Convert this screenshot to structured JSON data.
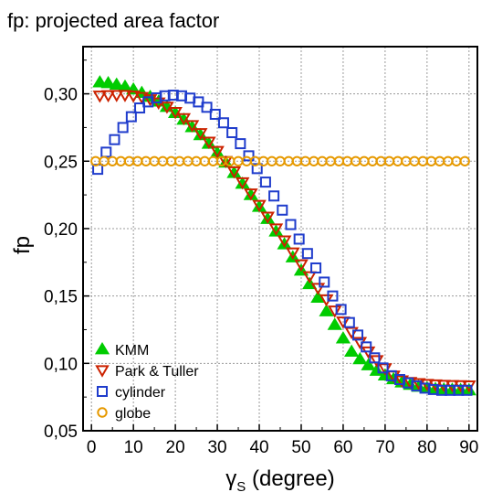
{
  "chart_data": {
    "type": "scatter",
    "title": "fp: projected area factor",
    "xlabel": "γS (degree)",
    "xlabel_parts": {
      "symbol": "γ",
      "subscript": "S",
      "rest": " (degree)"
    },
    "ylabel": "fp",
    "xlim": [
      -2,
      92
    ],
    "ylim": [
      0.05,
      0.335
    ],
    "x_ticks": [
      0,
      10,
      20,
      30,
      40,
      50,
      60,
      70,
      80,
      90
    ],
    "x_tick_labels": [
      "0",
      "10",
      "20",
      "30",
      "40",
      "50",
      "60",
      "70",
      "80",
      "90"
    ],
    "y_ticks": [
      0.05,
      0.1,
      0.15,
      0.2,
      0.25,
      0.3
    ],
    "y_tick_labels": [
      "0,05",
      "0,10",
      "0,15",
      "0,20",
      "0,25",
      "0,30"
    ],
    "grid": true,
    "legend_position": "bottom-left",
    "series": [
      {
        "name": "KMM",
        "marker": "triangle-up",
        "filled": true,
        "color": "#00cc00",
        "x": [
          2,
          4,
          6,
          8,
          10,
          12,
          14,
          16,
          18,
          20,
          22,
          24,
          26,
          28,
          30,
          32,
          34,
          36,
          38,
          40,
          42,
          44,
          46,
          48,
          50,
          52,
          54,
          56,
          58,
          60,
          62,
          64,
          66,
          68,
          70,
          72,
          74,
          76,
          78,
          80,
          82,
          84,
          86,
          88,
          90
        ],
        "y": [
          0.3085,
          0.3079,
          0.3068,
          0.3053,
          0.3032,
          0.3007,
          0.2977,
          0.2942,
          0.2902,
          0.2857,
          0.2807,
          0.2752,
          0.2693,
          0.2629,
          0.2561,
          0.2489,
          0.2412,
          0.2332,
          0.2248,
          0.2161,
          0.2071,
          0.1978,
          0.1883,
          0.1786,
          0.1688,
          0.1588,
          0.1487,
          0.1386,
          0.1285,
          0.1185,
          0.1086,
          0.103,
          0.0985,
          0.0945,
          0.091,
          0.0882,
          0.0858,
          0.084,
          0.0826,
          0.0816,
          0.081,
          0.0806,
          0.0804,
          0.0802,
          0.08
        ]
      },
      {
        "name": "Park & Tuller",
        "marker": "triangle-down",
        "filled": false,
        "color": "#cc2200",
        "x": [
          2,
          4,
          6,
          8,
          10,
          12,
          14,
          16,
          18,
          20,
          22,
          24,
          26,
          28,
          30,
          32,
          34,
          36,
          38,
          40,
          42,
          44,
          46,
          48,
          50,
          52,
          54,
          56,
          58,
          60,
          62,
          64,
          66,
          68,
          70,
          72,
          74,
          76,
          78,
          80,
          82,
          84,
          86,
          88,
          90
        ],
        "y": [
          0.2985,
          0.2988,
          0.299,
          0.299,
          0.2985,
          0.2975,
          0.2958,
          0.2934,
          0.2903,
          0.2864,
          0.2818,
          0.2766,
          0.2707,
          0.2643,
          0.2574,
          0.25,
          0.2423,
          0.2342,
          0.2259,
          0.2174,
          0.2087,
          0.1999,
          0.191,
          0.1821,
          0.1733,
          0.1645,
          0.1558,
          0.1473,
          0.139,
          0.1309,
          0.1231,
          0.1157,
          0.1087,
          0.1022,
          0.0962,
          0.0908,
          0.0872,
          0.086,
          0.0852,
          0.0846,
          0.0842,
          0.0839,
          0.0837,
          0.0836,
          0.0835
        ]
      },
      {
        "name": "cylinder",
        "marker": "square",
        "filled": false,
        "color": "#1f3ccc",
        "x": [
          1.5,
          3.5,
          5.5,
          7.5,
          9.5,
          11.5,
          13.5,
          15.5,
          17.5,
          19.5,
          21.5,
          23.5,
          25.5,
          27.5,
          29.5,
          31.5,
          33.5,
          35.5,
          37.5,
          39.5,
          41.5,
          43.5,
          45.5,
          47.5,
          49.5,
          51.5,
          53.5,
          55.5,
          57.5,
          59.5,
          61.5,
          63.5,
          65.5,
          67.5,
          69.5,
          71.5,
          73.5,
          75.5,
          77.5,
          79.5,
          81.5,
          83.5,
          85.5,
          87.5,
          89.5
        ],
        "y": [
          0.244,
          0.2567,
          0.266,
          0.275,
          0.283,
          0.2895,
          0.294,
          0.297,
          0.2985,
          0.299,
          0.2985,
          0.2968,
          0.294,
          0.29,
          0.2848,
          0.2785,
          0.2712,
          0.263,
          0.254,
          0.2445,
          0.2345,
          0.2242,
          0.2137,
          0.203,
          0.1922,
          0.1815,
          0.1708,
          0.1603,
          0.15,
          0.14,
          0.1303,
          0.121,
          0.1122,
          0.1041,
          0.0966,
          0.0908,
          0.088,
          0.0855,
          0.0833,
          0.0816,
          0.0806,
          0.08,
          0.08,
          0.08,
          0.08
        ]
      },
      {
        "name": "globe",
        "marker": "circle",
        "filled": false,
        "color": "#e69900",
        "x": [
          1,
          3,
          5,
          7,
          9,
          11,
          13,
          15,
          17,
          19,
          21,
          23,
          25,
          27,
          29,
          31,
          33,
          35,
          37,
          39,
          41,
          43,
          45,
          47,
          49,
          51,
          53,
          55,
          57,
          59,
          61,
          63,
          65,
          67,
          69,
          71,
          73,
          75,
          77,
          79,
          81,
          83,
          85,
          87,
          89
        ],
        "y": [
          0.25,
          0.25,
          0.25,
          0.25,
          0.25,
          0.25,
          0.25,
          0.25,
          0.25,
          0.25,
          0.25,
          0.25,
          0.25,
          0.25,
          0.25,
          0.25,
          0.25,
          0.25,
          0.25,
          0.25,
          0.25,
          0.25,
          0.25,
          0.25,
          0.25,
          0.25,
          0.25,
          0.25,
          0.25,
          0.25,
          0.25,
          0.25,
          0.25,
          0.25,
          0.25,
          0.25,
          0.25,
          0.25,
          0.25,
          0.25,
          0.25,
          0.25,
          0.25,
          0.25,
          0.25
        ]
      }
    ]
  }
}
